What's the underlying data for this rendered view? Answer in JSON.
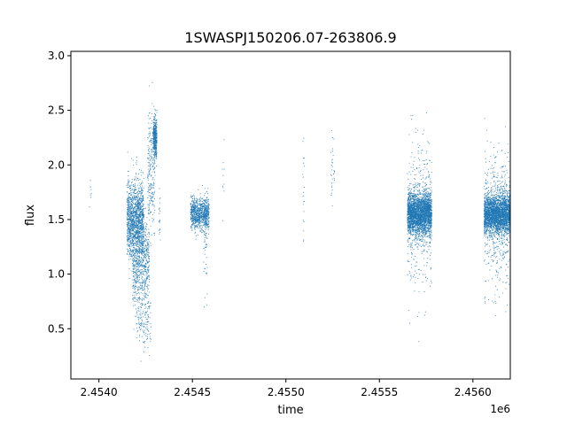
{
  "chart_data": {
    "type": "scatter",
    "title": "1SWASPJ150206.07-263806.9",
    "xlabel": "time",
    "ylabel": "flux",
    "x_offset_label": "1e6",
    "xlim": [
      2453850,
      2456200
    ],
    "ylim": [
      0.04,
      3.04
    ],
    "x_ticks": [
      {
        "value": 2454000,
        "label": "2.4540"
      },
      {
        "value": 2454500,
        "label": "2.4545"
      },
      {
        "value": 2455000,
        "label": "2.4550"
      },
      {
        "value": 2455500,
        "label": "2.4555"
      },
      {
        "value": 2456000,
        "label": "2.4560"
      }
    ],
    "y_ticks": [
      {
        "value": 0.5,
        "label": "0.5"
      },
      {
        "value": 1.0,
        "label": "1.0"
      },
      {
        "value": 1.5,
        "label": "1.5"
      },
      {
        "value": 2.0,
        "label": "2.0"
      },
      {
        "value": 2.5,
        "label": "2.5"
      },
      {
        "value": 3.0,
        "label": "3.0"
      }
    ],
    "grid": false,
    "point_color": "#1f77b4",
    "series": [
      {
        "clusters": [
          {
            "x_range": [
              2453950,
              2453960
            ],
            "y_center": 1.78,
            "y_spread": 0.1,
            "count": 8
          },
          {
            "x_range": [
              2454150,
              2454240
            ],
            "y_center": 1.5,
            "y_spread": 0.3,
            "count": 1400
          },
          {
            "x_range": [
              2454180,
              2454270
            ],
            "y_center": 1.1,
            "y_spread": 0.35,
            "count": 700
          },
          {
            "x_range": [
              2454200,
              2454280
            ],
            "y_center": 0.55,
            "y_spread": 0.2,
            "count": 120
          },
          {
            "x_range": [
              2454260,
              2454300
            ],
            "y_center": 1.9,
            "y_spread": 0.5,
            "count": 250
          },
          {
            "x_range": [
              2454290,
              2454310
            ],
            "y_center": 2.25,
            "y_spread": 0.15,
            "count": 400
          },
          {
            "x_range": [
              2454320,
              2454330
            ],
            "y_center": 1.55,
            "y_spread": 0.2,
            "count": 20
          },
          {
            "x_range": [
              2454490,
              2454590
            ],
            "y_center": 1.55,
            "y_spread": 0.12,
            "count": 900
          },
          {
            "x_range": [
              2454560,
              2454580
            ],
            "y_center": 1.3,
            "y_spread": 0.4,
            "count": 60
          },
          {
            "x_range": [
              2454660,
              2454670
            ],
            "y_center": 1.8,
            "y_spread": 0.3,
            "count": 10
          },
          {
            "x_range": [
              2455090,
              2455100
            ],
            "y_center": 1.8,
            "y_spread": 0.45,
            "count": 20
          },
          {
            "x_range": [
              2455240,
              2455260
            ],
            "y_center": 1.95,
            "y_spread": 0.3,
            "count": 30
          },
          {
            "x_range": [
              2455650,
              2455780
            ],
            "y_center": 1.55,
            "y_spread": 0.15,
            "count": 2600
          },
          {
            "x_range": [
              2455650,
              2455780
            ],
            "y_center": 1.55,
            "y_spread": 0.55,
            "count": 500
          },
          {
            "x_range": [
              2456060,
              2456200
            ],
            "y_center": 1.55,
            "y_spread": 0.15,
            "count": 2600
          },
          {
            "x_range": [
              2456060,
              2456200
            ],
            "y_center": 1.5,
            "y_spread": 0.55,
            "count": 500
          }
        ]
      }
    ]
  }
}
